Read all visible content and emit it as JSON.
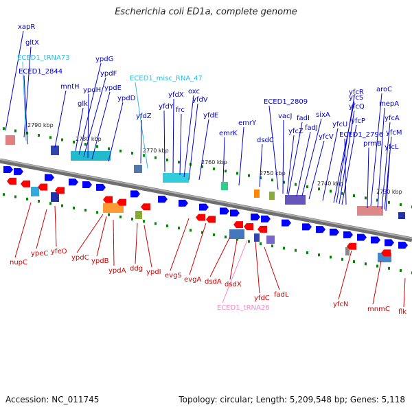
{
  "title": "Escherichia coli ED1a, complete genome",
  "accession": "Accession: NC_011745",
  "summary": "Topology: circular; Length: 5,209,548 bp; Genes: 5,118",
  "colors": {
    "forward_label": "#0000cc",
    "reverse_label": "#cc0000",
    "rna_label": "#33bbdd",
    "trna_label": "#ee88cc",
    "backbone": "#808080",
    "forward_feature": "#0000ff",
    "reverse_feature": "#ff0000",
    "tick_mark": "#008800"
  },
  "tick_labels": [
    "2790 kbp",
    "2780 kbp",
    "2770 kbp",
    "2760 kbp",
    "2750 kbp",
    "2740 kbp",
    "2730 kbp"
  ],
  "top_labels": [
    {
      "text": "xapR",
      "kind": "forward"
    },
    {
      "text": "gltX",
      "kind": "forward"
    },
    {
      "text": "ECED1_tRNA73",
      "kind": "rna"
    },
    {
      "text": "ECED1_2844",
      "kind": "forward"
    },
    {
      "text": "mntH",
      "kind": "forward"
    },
    {
      "text": "ypdG",
      "kind": "forward"
    },
    {
      "text": "ypdF",
      "kind": "forward"
    },
    {
      "text": "ypdH",
      "kind": "forward"
    },
    {
      "text": "ypdE",
      "kind": "forward"
    },
    {
      "text": "glk",
      "kind": "forward"
    },
    {
      "text": "ypdD",
      "kind": "forward"
    },
    {
      "text": "ECED1_misc_RNA_47",
      "kind": "rna"
    },
    {
      "text": "oxc",
      "kind": "forward"
    },
    {
      "text": "yfdX",
      "kind": "forward"
    },
    {
      "text": "yfdV",
      "kind": "forward"
    },
    {
      "text": "yfdY",
      "kind": "forward"
    },
    {
      "text": "frc",
      "kind": "forward"
    },
    {
      "text": "yfdZ",
      "kind": "forward"
    },
    {
      "text": "yfdE",
      "kind": "forward"
    },
    {
      "text": "emrY",
      "kind": "forward"
    },
    {
      "text": "emrK",
      "kind": "forward"
    },
    {
      "text": "ECED1_2809",
      "kind": "forward"
    },
    {
      "text": "dsdC",
      "kind": "forward"
    },
    {
      "text": "vacJ",
      "kind": "forward"
    },
    {
      "text": "fadI",
      "kind": "forward"
    },
    {
      "text": "sixA",
      "kind": "forward"
    },
    {
      "text": "fadJ",
      "kind": "forward"
    },
    {
      "text": "yfcZ",
      "kind": "forward"
    },
    {
      "text": "yfcV",
      "kind": "forward"
    },
    {
      "text": "yfcU",
      "kind": "forward"
    },
    {
      "text": "yfcS",
      "kind": "forward"
    },
    {
      "text": "yfcR",
      "kind": "forward"
    },
    {
      "text": "yfcQ",
      "kind": "forward"
    },
    {
      "text": "yfcP",
      "kind": "forward"
    },
    {
      "text": "ECED1_2796",
      "kind": "forward"
    },
    {
      "text": "aroC",
      "kind": "forward"
    },
    {
      "text": "mepA",
      "kind": "forward"
    },
    {
      "text": "yfcA",
      "kind": "forward"
    },
    {
      "text": "yfcM",
      "kind": "forward"
    },
    {
      "text": "prmB",
      "kind": "forward"
    },
    {
      "text": "yfcL",
      "kind": "forward"
    }
  ],
  "bottom_labels": [
    {
      "text": "nupC",
      "kind": "reverse"
    },
    {
      "text": "ypeC",
      "kind": "reverse"
    },
    {
      "text": "yfeO",
      "kind": "reverse"
    },
    {
      "text": "ypdC",
      "kind": "reverse"
    },
    {
      "text": "ypdB",
      "kind": "reverse"
    },
    {
      "text": "ypdA",
      "kind": "reverse"
    },
    {
      "text": "ddg",
      "kind": "reverse"
    },
    {
      "text": "ypdI",
      "kind": "reverse"
    },
    {
      "text": "evgS",
      "kind": "reverse"
    },
    {
      "text": "evgA",
      "kind": "reverse"
    },
    {
      "text": "dsdA",
      "kind": "reverse"
    },
    {
      "text": "dsdX",
      "kind": "reverse"
    },
    {
      "text": "yfdC",
      "kind": "reverse"
    },
    {
      "text": "fadL",
      "kind": "reverse"
    },
    {
      "text": "ECED1_tRNA26",
      "kind": "trna"
    },
    {
      "text": "yfcN",
      "kind": "reverse"
    },
    {
      "text": "mnmC",
      "kind": "reverse"
    },
    {
      "text": "flk",
      "kind": "reverse"
    }
  ]
}
